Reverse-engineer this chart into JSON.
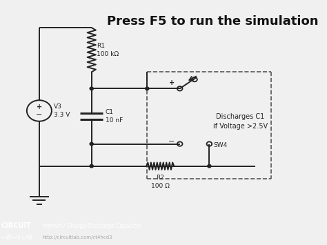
{
  "title": "Press F5 to run the simulation",
  "title_fontsize": 13,
  "title_fontweight": "bold",
  "bg_color": "#f0f0f0",
  "footer_bg": "#1a1a1a",
  "footer_text1": "mrmuh / Charge/Discharge Capacitor",
  "footer_text2": "http://circuitlab.com/ct4hcd3",
  "footer_logo1": "CIRCUIT",
  "footer_logo2": "—W—H LAB",
  "label_R1": "R1\n100 kΩ",
  "label_C1": "C1\n10 nF",
  "label_R2": "R2\n100 Ω",
  "label_V3": "V3\n3.3 V",
  "label_SW4": "SW4",
  "label_discharge": "Discharges C1\nif Voltage >2.5V",
  "line_color": "#222222",
  "dashed_color": "#555555",
  "wire_lw": 1.4,
  "component_lw": 1.4
}
